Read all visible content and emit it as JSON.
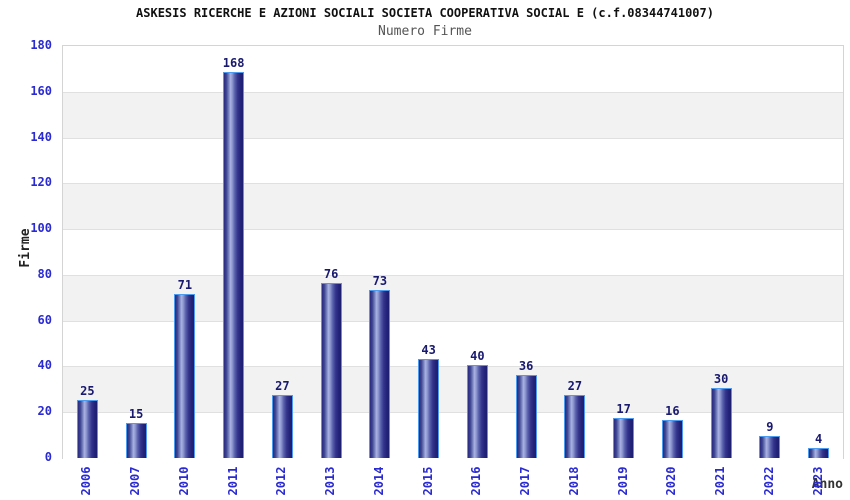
{
  "header": {
    "title": "ASKESIS RICERCHE E AZIONI SOCIALI SOCIETA COOPERATIVA SOCIAL E (c.f.08344741007)",
    "subtitle": "Numero Firme"
  },
  "chart_data": {
    "type": "bar",
    "title": "ASKESIS RICERCHE E AZIONI SOCIALI SOCIETA COOPERATIVA SOCIAL E (c.f.08344741007)",
    "subtitle": "Numero Firme",
    "categories": [
      "2006",
      "2007",
      "2010",
      "2011",
      "2012",
      "2013",
      "2014",
      "2015",
      "2016",
      "2017",
      "2018",
      "2019",
      "2020",
      "2021",
      "2022",
      "2023"
    ],
    "values": [
      25,
      15,
      71,
      168,
      27,
      76,
      73,
      43,
      40,
      36,
      27,
      17,
      16,
      30,
      9,
      4
    ],
    "xlabel": "Anno",
    "ylabel": "Firme",
    "ylim": [
      0,
      180
    ],
    "ytick_step": 20,
    "yticks": [
      0,
      20,
      40,
      60,
      80,
      100,
      120,
      140,
      160,
      180
    ],
    "grid": "horizontal-bands",
    "legend": "none",
    "bar_labels_shown": true
  },
  "colors": {
    "tick_label": "#2a2ad2",
    "value_label": "#191970",
    "bar_border": "#4e9af0",
    "bar_body_dark": "#23237a",
    "bar_body_highlight": "#aab3e2",
    "band_alt": "#f2f2f2",
    "band_main": "#ffffff",
    "gridline": "#e0e0e0",
    "title": "#111111",
    "subtitle": "#555555",
    "axis_title": "#222222"
  }
}
